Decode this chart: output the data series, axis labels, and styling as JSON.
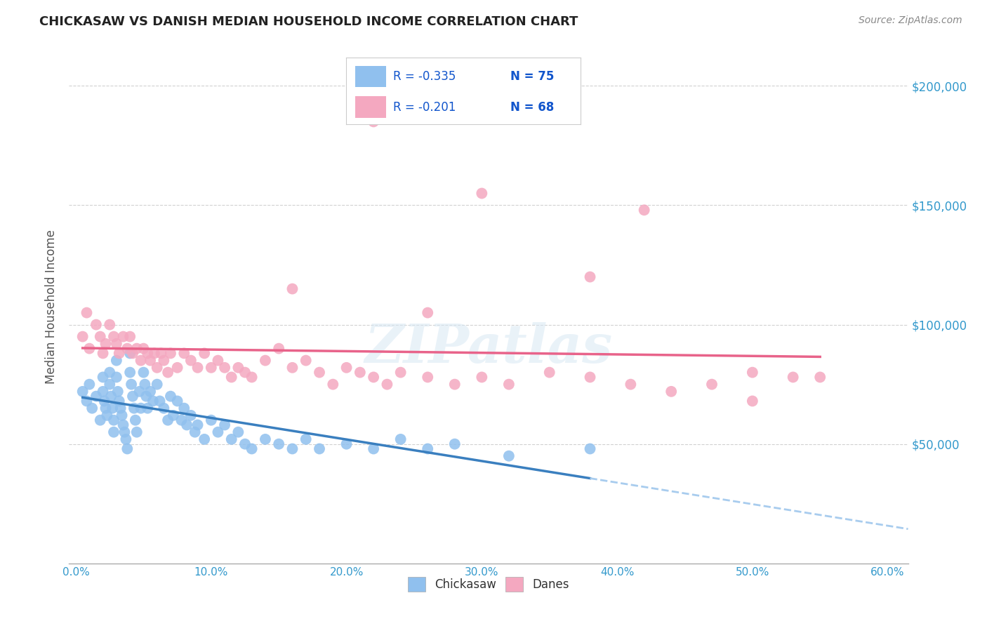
{
  "title": "CHICKASAW VS DANISH MEDIAN HOUSEHOLD INCOME CORRELATION CHART",
  "source": "Source: ZipAtlas.com",
  "ylabel": "Median Household Income",
  "xlabel_ticks": [
    "0.0%",
    "10.0%",
    "20.0%",
    "30.0%",
    "40.0%",
    "50.0%",
    "60.0%"
  ],
  "xlabel_vals": [
    0.0,
    0.1,
    0.2,
    0.3,
    0.4,
    0.5,
    0.6
  ],
  "ytick_labels": [
    "$50,000",
    "$100,000",
    "$150,000",
    "$200,000"
  ],
  "ytick_vals": [
    50000,
    100000,
    150000,
    200000
  ],
  "ylim": [
    0,
    215000
  ],
  "xlim": [
    -0.005,
    0.615
  ],
  "chickasaw_color": "#90C0EE",
  "danes_color": "#F4A8C0",
  "chickasaw_line_color": "#3A7FBF",
  "danes_line_color": "#E8638A",
  "trendline_ext_color": "#A8CCEE",
  "legend_R1": "R = -0.335",
  "legend_N1": "N = 75",
  "legend_R2": "R = -0.201",
  "legend_N2": "N = 68",
  "legend_labels": [
    "Chickasaw",
    "Danes"
  ],
  "watermark": "ZIPatlas",
  "background_color": "#FFFFFF",
  "grid_color": "#CCCCCC",
  "title_color": "#222222",
  "axis_label_color": "#555555",
  "ytick_color": "#3399CC",
  "xtick_color": "#3399CC",
  "chickasaw_x": [
    0.005,
    0.008,
    0.01,
    0.012,
    0.015,
    0.018,
    0.02,
    0.02,
    0.021,
    0.022,
    0.023,
    0.025,
    0.025,
    0.026,
    0.027,
    0.028,
    0.028,
    0.03,
    0.03,
    0.031,
    0.032,
    0.033,
    0.034,
    0.035,
    0.036,
    0.037,
    0.038,
    0.04,
    0.04,
    0.041,
    0.042,
    0.043,
    0.044,
    0.045,
    0.047,
    0.048,
    0.05,
    0.051,
    0.052,
    0.053,
    0.055,
    0.057,
    0.06,
    0.062,
    0.065,
    0.068,
    0.07,
    0.072,
    0.075,
    0.078,
    0.08,
    0.082,
    0.085,
    0.088,
    0.09,
    0.095,
    0.1,
    0.105,
    0.11,
    0.115,
    0.12,
    0.125,
    0.13,
    0.14,
    0.15,
    0.16,
    0.17,
    0.18,
    0.2,
    0.22,
    0.24,
    0.26,
    0.28,
    0.32,
    0.38
  ],
  "chickasaw_y": [
    72000,
    68000,
    75000,
    65000,
    70000,
    60000,
    78000,
    72000,
    68000,
    65000,
    62000,
    80000,
    75000,
    70000,
    65000,
    60000,
    55000,
    85000,
    78000,
    72000,
    68000,
    65000,
    62000,
    58000,
    55000,
    52000,
    48000,
    88000,
    80000,
    75000,
    70000,
    65000,
    60000,
    55000,
    72000,
    65000,
    80000,
    75000,
    70000,
    65000,
    72000,
    68000,
    75000,
    68000,
    65000,
    60000,
    70000,
    62000,
    68000,
    60000,
    65000,
    58000,
    62000,
    55000,
    58000,
    52000,
    60000,
    55000,
    58000,
    52000,
    55000,
    50000,
    48000,
    52000,
    50000,
    48000,
    52000,
    48000,
    50000,
    48000,
    52000,
    48000,
    50000,
    45000,
    48000
  ],
  "danes_x": [
    0.005,
    0.008,
    0.01,
    0.015,
    0.018,
    0.02,
    0.022,
    0.025,
    0.028,
    0.03,
    0.032,
    0.035,
    0.038,
    0.04,
    0.042,
    0.045,
    0.048,
    0.05,
    0.053,
    0.055,
    0.058,
    0.06,
    0.063,
    0.065,
    0.068,
    0.07,
    0.075,
    0.08,
    0.085,
    0.09,
    0.095,
    0.1,
    0.105,
    0.11,
    0.115,
    0.12,
    0.125,
    0.13,
    0.14,
    0.15,
    0.16,
    0.17,
    0.18,
    0.19,
    0.2,
    0.21,
    0.22,
    0.23,
    0.24,
    0.26,
    0.28,
    0.3,
    0.32,
    0.35,
    0.38,
    0.41,
    0.44,
    0.47,
    0.5,
    0.53,
    0.38,
    0.3,
    0.26,
    0.16,
    0.22,
    0.42,
    0.5,
    0.55
  ],
  "danes_y": [
    95000,
    105000,
    90000,
    100000,
    95000,
    88000,
    92000,
    100000,
    95000,
    92000,
    88000,
    95000,
    90000,
    95000,
    88000,
    90000,
    85000,
    90000,
    88000,
    85000,
    88000,
    82000,
    88000,
    85000,
    80000,
    88000,
    82000,
    88000,
    85000,
    82000,
    88000,
    82000,
    85000,
    82000,
    78000,
    82000,
    80000,
    78000,
    85000,
    90000,
    82000,
    85000,
    80000,
    75000,
    82000,
    80000,
    78000,
    75000,
    80000,
    78000,
    75000,
    78000,
    75000,
    80000,
    78000,
    75000,
    72000,
    75000,
    68000,
    78000,
    120000,
    155000,
    105000,
    115000,
    185000,
    148000,
    80000,
    78000
  ]
}
